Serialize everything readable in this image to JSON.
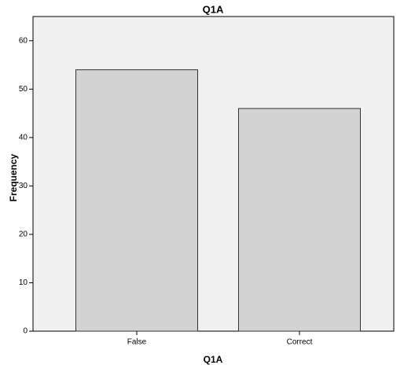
{
  "chart_data": {
    "type": "bar",
    "title": "Q1A",
    "x_label": "Q1A",
    "y_label": "Frequency",
    "categories": [
      "False",
      "Correct"
    ],
    "values": [
      54,
      46
    ],
    "color": "#d3d3d3",
    "ylim": [
      0,
      65
    ],
    "yticks": [
      0,
      10,
      20,
      30,
      40,
      50,
      60
    ],
    "grid": false
  }
}
